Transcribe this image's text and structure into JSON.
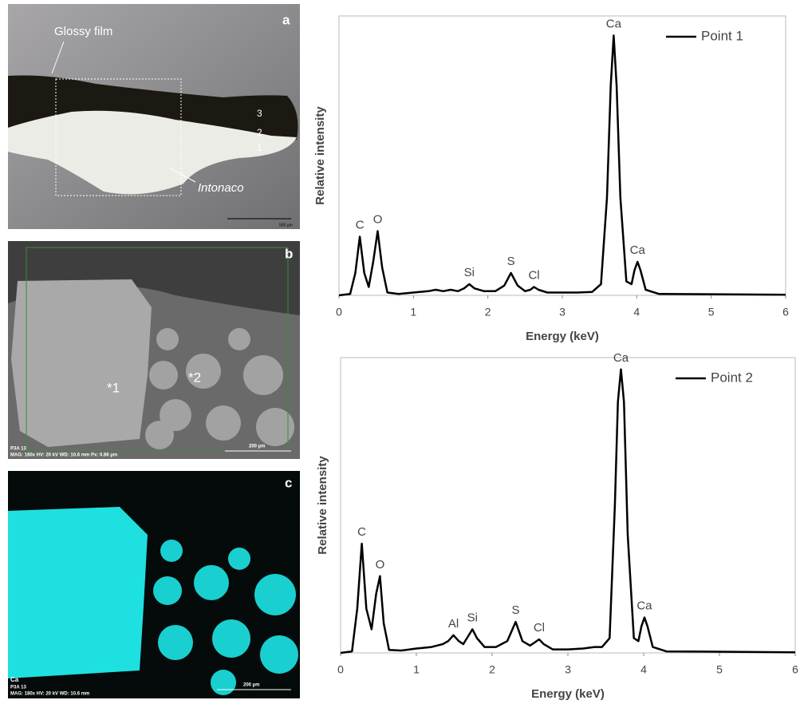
{
  "chart_data": [
    {
      "type": "line",
      "x_label": "Energy (keV)",
      "y_label": "Relative intensity",
      "xlim": [
        0,
        6
      ],
      "xticks": [
        0,
        1,
        2,
        3,
        4,
        5,
        6
      ],
      "ylim": [
        0,
        100
      ],
      "legend": "upper right",
      "x": [
        0,
        0.15,
        0.22,
        0.28,
        0.34,
        0.4,
        0.46,
        0.52,
        0.58,
        0.65,
        0.8,
        1.0,
        1.2,
        1.3,
        1.4,
        1.5,
        1.6,
        1.68,
        1.75,
        1.82,
        1.95,
        2.1,
        2.22,
        2.31,
        2.4,
        2.5,
        2.57,
        2.62,
        2.68,
        2.8,
        3.0,
        3.2,
        3.4,
        3.52,
        3.6,
        3.65,
        3.69,
        3.73,
        3.78,
        3.86,
        3.93,
        3.97,
        4.01,
        4.05,
        4.12,
        4.3,
        5.0,
        6.0
      ],
      "series": [
        {
          "name": "Point 1",
          "color": "#000000",
          "values": [
            0,
            0.5,
            8,
            21,
            8,
            3,
            12,
            23,
            10,
            1,
            0.5,
            1,
            1.5,
            2,
            1.5,
            2,
            1.5,
            2.5,
            4,
            2.5,
            1.5,
            1.5,
            3.5,
            8,
            3.5,
            1.5,
            2,
            3,
            2,
            1,
            1,
            1,
            1.2,
            4,
            35,
            75,
            93,
            75,
            35,
            5,
            4,
            9,
            12,
            9,
            2,
            0.5,
            0.4,
            0.2
          ]
        }
      ],
      "annotations": [
        {
          "text": "C",
          "x": 0.28
        },
        {
          "text": "O",
          "x": 0.52
        },
        {
          "text": "Si",
          "x": 1.75
        },
        {
          "text": "S",
          "x": 2.31
        },
        {
          "text": "Cl",
          "x": 2.62
        },
        {
          "text": "Ca",
          "x": 3.69
        },
        {
          "text": "Ca",
          "x": 4.01
        }
      ]
    },
    {
      "type": "line",
      "x_label": "Energy (keV)",
      "y_label": "Relative intensity",
      "xlim": [
        0,
        6
      ],
      "xticks": [
        0,
        1,
        2,
        3,
        4,
        5,
        6
      ],
      "ylim": [
        0,
        100
      ],
      "legend": "upper right",
      "x": [
        0,
        0.15,
        0.22,
        0.28,
        0.34,
        0.41,
        0.47,
        0.52,
        0.57,
        0.64,
        0.8,
        1.0,
        1.2,
        1.35,
        1.42,
        1.49,
        1.56,
        1.62,
        1.68,
        1.74,
        1.8,
        1.9,
        2.05,
        2.2,
        2.31,
        2.4,
        2.5,
        2.56,
        2.62,
        2.68,
        2.8,
        3.0,
        3.2,
        3.35,
        3.45,
        3.55,
        3.62,
        3.66,
        3.7,
        3.74,
        3.79,
        3.87,
        3.93,
        3.97,
        4.01,
        4.05,
        4.12,
        4.3,
        5.0,
        6.0
      ],
      "series": [
        {
          "name": "Point 2",
          "color": "#000000",
          "values": [
            0,
            0.5,
            15,
            37,
            15,
            8,
            20,
            26,
            10,
            1,
            0.8,
            1.5,
            2,
            3,
            4,
            6,
            4,
            3,
            5.5,
            8,
            5,
            2,
            2,
            4,
            10.5,
            4,
            2.5,
            3.5,
            4.6,
            3,
            1.2,
            1.2,
            1.5,
            2,
            2,
            5,
            50,
            85,
            96,
            85,
            40,
            5,
            4,
            9,
            12,
            9,
            2,
            0.5,
            0.4,
            0.2
          ]
        }
      ],
      "annotations": [
        {
          "text": "C",
          "x": 0.28
        },
        {
          "text": "O",
          "x": 0.52
        },
        {
          "text": "Al",
          "x": 1.49
        },
        {
          "text": "Si",
          "x": 1.74
        },
        {
          "text": "S",
          "x": 2.31
        },
        {
          "text": "Cl",
          "x": 2.62
        },
        {
          "text": "Ca",
          "x": 3.7
        },
        {
          "text": "Ca",
          "x": 4.01
        }
      ]
    }
  ],
  "panels": {
    "a": {
      "label": "a",
      "glossy": "Glossy film",
      "layers": [
        "3",
        "2",
        "1"
      ],
      "intonaco": "Intonaco",
      "scale": "500 µm"
    },
    "b": {
      "label": "b",
      "points": [
        "*1",
        "*2"
      ],
      "info": [
        "P3A 13",
        "MAG: 180x   HV: 20 kV   WD: 10.6 mm   Px: 0.86 µm"
      ],
      "scale": "200 µm"
    },
    "c": {
      "label": "c",
      "element": "Ca",
      "info": [
        "P3A 13",
        "MAG: 180x   HV: 20 kV   WD: 10.6 mm"
      ],
      "scale": "200 µm"
    }
  }
}
